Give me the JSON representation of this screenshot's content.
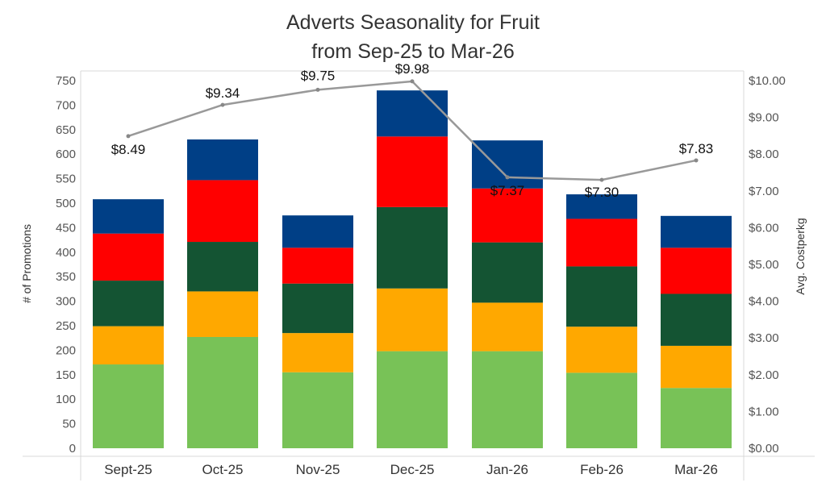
{
  "chart_data": {
    "type": "bar",
    "stacked": true,
    "title": "Adverts Seasonality for Fruit",
    "subtitle": "from Sep-25 to Mar-26",
    "categories": [
      "Sept-25",
      "Oct-25",
      "Nov-25",
      "Dec-25",
      "Jan-26",
      "Feb-26",
      "Mar-26"
    ],
    "ylabel": "# of Promotions",
    "ylim": [
      0,
      750
    ],
    "yticks": [
      0,
      50,
      100,
      150,
      200,
      250,
      300,
      350,
      400,
      450,
      500,
      550,
      600,
      650,
      700,
      750
    ],
    "y2label": "Avg. Costperkg",
    "y2lim": [
      0,
      10
    ],
    "y2ticks": [
      "$0.00",
      "$1.00",
      "$2.00",
      "$3.00",
      "$4.00",
      "$5.00",
      "$6.00",
      "$7.00",
      "$8.00",
      "$9.00",
      "$10.00"
    ],
    "grid": false,
    "series": [
      {
        "values": [
          171,
          227,
          155,
          198,
          198,
          154,
          123
        ],
        "color": "#78c257"
      },
      {
        "values": [
          78,
          93,
          80,
          128,
          99,
          94,
          86
        ],
        "color": "#ffa800"
      },
      {
        "values": [
          93,
          101,
          101,
          166,
          123,
          123,
          106
        ],
        "color": "#145433"
      },
      {
        "values": [
          96,
          126,
          73,
          144,
          110,
          97,
          94
        ],
        "color": "#ff0000"
      },
      {
        "values": [
          70,
          83,
          66,
          94,
          98,
          50,
          65
        ],
        "color": "#003f86"
      }
    ],
    "line": {
      "values": [
        8.49,
        9.34,
        9.75,
        9.98,
        7.37,
        7.3,
        7.83
      ],
      "labels": [
        "$8.49",
        "$9.34",
        "$9.75",
        "$9.98",
        "$7.37",
        "$7.30",
        "$7.83"
      ],
      "color": "#999999"
    }
  }
}
